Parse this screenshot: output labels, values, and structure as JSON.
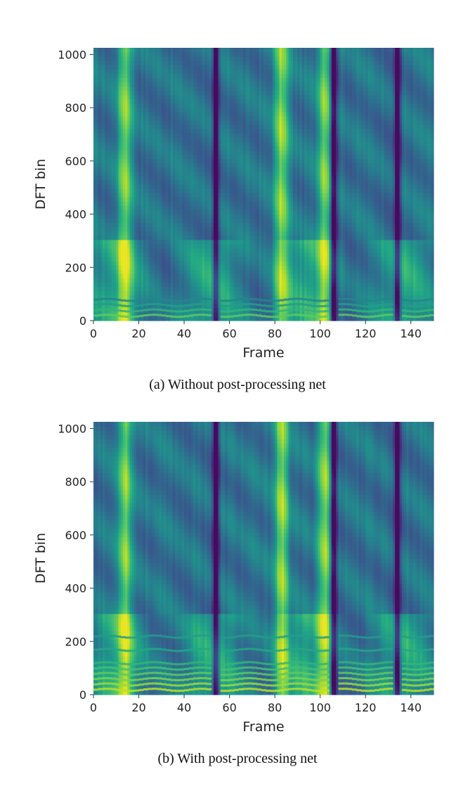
{
  "chart_data": [
    {
      "type": "heatmap",
      "title": "",
      "caption": "(a) Without post-processing net",
      "xlabel": "Frame",
      "ylabel": "DFT bin",
      "xlim": [
        0,
        150
      ],
      "ylim": [
        0,
        1025
      ],
      "xticks": [
        0,
        20,
        40,
        60,
        80,
        100,
        120,
        140
      ],
      "yticks": [
        0,
        200,
        400,
        600,
        800,
        1000
      ],
      "colormap": "viridis",
      "post_processing": false,
      "bright_vertical_bands_frames": [
        14,
        83,
        102
      ],
      "dark_vertical_gaps_frames": [
        54,
        106,
        134
      ],
      "low_bin_harmonics_bins": [
        0,
        20,
        40,
        60
      ]
    },
    {
      "type": "heatmap",
      "title": "",
      "caption": "(b) With post-processing net",
      "xlabel": "Frame",
      "ylabel": "DFT bin",
      "xlim": [
        0,
        150
      ],
      "ylim": [
        0,
        1025
      ],
      "xticks": [
        0,
        20,
        40,
        60,
        80,
        100,
        120,
        140
      ],
      "yticks": [
        0,
        200,
        400,
        600,
        800,
        1000
      ],
      "colormap": "viridis",
      "post_processing": true,
      "bright_vertical_bands_frames": [
        14,
        83,
        102
      ],
      "dark_vertical_gaps_frames": [
        54,
        106,
        134
      ],
      "low_bin_harmonics_bins": [
        0,
        20,
        40,
        60,
        80,
        100,
        150,
        200
      ]
    }
  ]
}
